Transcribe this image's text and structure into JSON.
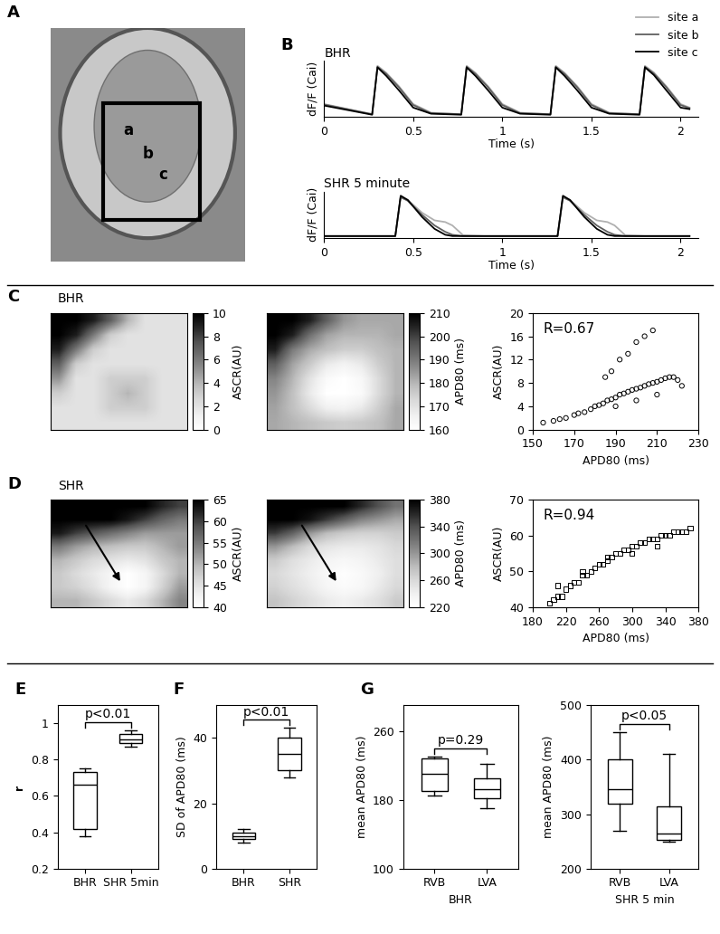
{
  "chart_data": [
    {
      "panel": "A",
      "type": "image",
      "annotations": [
        "a",
        "b",
        "c"
      ]
    },
    {
      "panel": "B",
      "type": "line",
      "title": "BHR",
      "xlabel": "Time (s)",
      "ylabel": "dF/F (Cai)",
      "x": [
        0,
        0.27,
        0.3,
        0.35,
        0.42,
        0.5,
        0.6,
        0.77,
        0.8,
        0.85,
        0.92,
        1.0,
        1.1,
        1.27,
        1.3,
        1.35,
        1.42,
        1.5,
        1.6,
        1.77,
        1.8,
        1.85,
        1.92,
        2.0,
        2.05
      ],
      "series": [
        {
          "name": "site a",
          "color": "#b0b0b0",
          "values": [
            0.25,
            0.05,
            1.0,
            0.86,
            0.6,
            0.25,
            0.08,
            0.05,
            1.0,
            0.86,
            0.6,
            0.25,
            0.08,
            0.05,
            1.0,
            0.86,
            0.6,
            0.25,
            0.08,
            0.05,
            1.0,
            0.87,
            0.6,
            0.25,
            0.18
          ]
        },
        {
          "name": "site b",
          "color": "#606060",
          "values": [
            0.24,
            0.05,
            0.98,
            0.84,
            0.58,
            0.23,
            0.07,
            0.05,
            0.98,
            0.84,
            0.58,
            0.23,
            0.07,
            0.05,
            0.98,
            0.84,
            0.58,
            0.23,
            0.07,
            0.05,
            0.98,
            0.85,
            0.58,
            0.23,
            0.17
          ]
        },
        {
          "name": "site c",
          "color": "#000000",
          "values": [
            0.22,
            0.04,
            0.97,
            0.8,
            0.52,
            0.18,
            0.06,
            0.04,
            0.97,
            0.8,
            0.52,
            0.18,
            0.06,
            0.04,
            0.97,
            0.8,
            0.52,
            0.18,
            0.06,
            0.04,
            0.97,
            0.82,
            0.52,
            0.18,
            0.15
          ]
        }
      ],
      "xlim": [
        0,
        2.1
      ],
      "xticks": [
        0,
        0.5,
        1,
        1.5,
        2
      ],
      "ylim": [
        0,
        1.1
      ],
      "tick_labels": "x",
      "legend": "upper right"
    },
    {
      "type": "line",
      "title": "SHR 5 minute",
      "xlabel": "Time (s)",
      "ylabel": "dF/F (Cai)",
      "x": [
        0,
        0.4,
        0.43,
        0.47,
        0.55,
        0.62,
        0.68,
        0.72,
        0.78,
        0.9,
        1.31,
        1.34,
        1.38,
        1.46,
        1.53,
        1.59,
        1.63,
        1.69,
        1.8,
        2.05
      ],
      "series": [
        {
          "color": "#b0b0b0",
          "values": [
            0.05,
            0.05,
            0.95,
            0.9,
            0.6,
            0.42,
            0.38,
            0.3,
            0.07,
            0.05,
            0.05,
            0.95,
            0.9,
            0.6,
            0.42,
            0.38,
            0.3,
            0.07,
            0.05,
            0.05
          ]
        },
        {
          "color": "#606060",
          "values": [
            0.05,
            0.05,
            0.97,
            0.88,
            0.55,
            0.3,
            0.15,
            0.08,
            0.05,
            0.05,
            0.05,
            0.97,
            0.88,
            0.55,
            0.3,
            0.15,
            0.08,
            0.05,
            0.05,
            0.05
          ]
        },
        {
          "color": "#000000",
          "values": [
            0.05,
            0.05,
            1.0,
            0.9,
            0.5,
            0.22,
            0.08,
            0.05,
            0.05,
            0.05,
            0.05,
            1.0,
            0.9,
            0.5,
            0.22,
            0.08,
            0.05,
            0.05,
            0.05,
            0.05
          ]
        }
      ],
      "xlim": [
        0,
        2.1
      ],
      "xticks": [
        0,
        0.5,
        1,
        1.5,
        2
      ],
      "ylim": [
        0,
        1.1
      ],
      "tick_labels": "x"
    },
    {
      "panel": "C",
      "type": "heatmap",
      "title": "BHR",
      "colorbar_label": "ASCR(AU)",
      "clim": [
        0,
        10
      ],
      "cticks": [
        0,
        2,
        4,
        6,
        8,
        10
      ],
      "tick_labels": false,
      "cells": [
        [
          10,
          10,
          9,
          7,
          4,
          2,
          2,
          2
        ],
        [
          10,
          9,
          6,
          3,
          2,
          2,
          2,
          2
        ],
        [
          9,
          6,
          3,
          2,
          2,
          2,
          2,
          2
        ],
        [
          7,
          3,
          2,
          2,
          2,
          2,
          2,
          2
        ],
        [
          5,
          2,
          2,
          3,
          3,
          3,
          2,
          2
        ],
        [
          3,
          2,
          2,
          3,
          4,
          3,
          2,
          2
        ],
        [
          2,
          2,
          2,
          3,
          3,
          3,
          2,
          2
        ],
        [
          2,
          2,
          2,
          2,
          2,
          2,
          2,
          2
        ]
      ]
    },
    {
      "type": "heatmap",
      "colorbar_label": "APD80 (ms)",
      "clim": [
        160,
        210
      ],
      "cticks": [
        160,
        170,
        180,
        190,
        200,
        210
      ],
      "tick_labels": false,
      "cells": [
        [
          210,
          210,
          205,
          195,
          185,
          182,
          182,
          182
        ],
        [
          210,
          205,
          192,
          183,
          180,
          180,
          180,
          182
        ],
        [
          205,
          190,
          182,
          178,
          175,
          175,
          178,
          180
        ],
        [
          195,
          183,
          176,
          168,
          165,
          168,
          175,
          180
        ],
        [
          188,
          180,
          170,
          162,
          160,
          163,
          172,
          180
        ],
        [
          185,
          178,
          168,
          160,
          160,
          162,
          172,
          180
        ],
        [
          183,
          178,
          172,
          166,
          165,
          168,
          175,
          182
        ],
        [
          182,
          180,
          178,
          176,
          175,
          176,
          178,
          182
        ]
      ]
    },
    {
      "type": "scatter",
      "annotation": "R=0.67",
      "xlabel": "APD80 (ms)",
      "ylabel": "ASCR(AU)",
      "marker": "o",
      "x": [
        155,
        160,
        163,
        166,
        170,
        172,
        175,
        178,
        180,
        182,
        184,
        186,
        188,
        190,
        190,
        192,
        194,
        196,
        198,
        200,
        200,
        202,
        204,
        206,
        208,
        210,
        210,
        212,
        214,
        216,
        218,
        220,
        222,
        188,
        192,
        196,
        200,
        204,
        208,
        185
      ],
      "y": [
        1.2,
        1.5,
        1.8,
        2,
        2.5,
        2.8,
        3,
        3.5,
        4,
        4.2,
        4.5,
        5,
        5.2,
        5.5,
        4,
        6,
        6.2,
        6.5,
        6.8,
        7,
        5,
        7.2,
        7.5,
        7.8,
        8,
        8.2,
        6,
        8.5,
        8.8,
        9,
        9,
        8.5,
        7.5,
        10,
        12,
        13,
        15,
        16,
        17,
        9
      ],
      "xlim": [
        150,
        230
      ],
      "xticks": [
        150,
        170,
        190,
        210,
        230
      ],
      "ylim": [
        0,
        20
      ],
      "yticks": [
        0,
        4,
        8,
        12,
        16,
        20
      ]
    },
    {
      "panel": "D",
      "type": "heatmap",
      "title": "SHR",
      "colorbar_label": "ASCR(AU)",
      "clim": [
        40,
        65
      ],
      "cticks": [
        40,
        45,
        50,
        55,
        60,
        65
      ],
      "tick_labels": false,
      "cells": [
        [
          65,
          65,
          65,
          65,
          65,
          65,
          62,
          60
        ],
        [
          65,
          65,
          65,
          65,
          63,
          60,
          57,
          55
        ],
        [
          63,
          60,
          58,
          56,
          54,
          52,
          52,
          52
        ],
        [
          55,
          52,
          50,
          49,
          48,
          48,
          50,
          52
        ],
        [
          50,
          48,
          46,
          45,
          44,
          45,
          48,
          50
        ],
        [
          48,
          46,
          44,
          42,
          40,
          42,
          46,
          50
        ],
        [
          48,
          47,
          45,
          42,
          40,
          42,
          47,
          52
        ],
        [
          50,
          50,
          48,
          46,
          44,
          46,
          50,
          54
        ]
      ]
    },
    {
      "type": "heatmap",
      "colorbar_label": "APD80 (ms)",
      "clim": [
        220,
        380
      ],
      "cticks": [
        220,
        260,
        300,
        340,
        380
      ],
      "tick_labels": false,
      "cells": [
        [
          380,
          380,
          380,
          380,
          380,
          360,
          340,
          320
        ],
        [
          380,
          380,
          370,
          350,
          330,
          310,
          300,
          290
        ],
        [
          350,
          330,
          300,
          280,
          270,
          265,
          265,
          270
        ],
        [
          300,
          280,
          260,
          250,
          245,
          245,
          250,
          260
        ],
        [
          270,
          255,
          245,
          235,
          230,
          235,
          245,
          255
        ],
        [
          260,
          250,
          240,
          228,
          222,
          228,
          240,
          255
        ],
        [
          265,
          255,
          245,
          232,
          225,
          230,
          245,
          260
        ],
        [
          275,
          265,
          255,
          245,
          238,
          245,
          255,
          270
        ]
      ]
    },
    {
      "type": "scatter",
      "annotation": "R=0.94",
      "xlabel": "APD80 (ms)",
      "ylabel": "ASCR(AU)",
      "marker": "s",
      "x": [
        200,
        205,
        210,
        215,
        220,
        225,
        230,
        235,
        240,
        245,
        250,
        255,
        260,
        265,
        270,
        275,
        280,
        285,
        290,
        295,
        300,
        305,
        310,
        315,
        320,
        325,
        330,
        335,
        340,
        345,
        350,
        355,
        360,
        365,
        370,
        210,
        240,
        270,
        300,
        330
      ],
      "y": [
        41,
        42,
        43,
        43,
        45,
        46,
        47,
        47,
        49,
        49,
        50,
        51,
        52,
        52,
        53,
        54,
        55,
        55,
        56,
        56,
        57,
        57,
        58,
        58,
        59,
        59,
        59,
        60,
        60,
        60,
        61,
        61,
        61,
        61,
        62,
        46,
        50,
        54,
        55,
        57
      ],
      "xlim": [
        180,
        380
      ],
      "xticks": [
        180,
        220,
        260,
        300,
        340,
        380
      ],
      "ylim": [
        40,
        70
      ],
      "yticks": [
        40,
        50,
        60,
        70
      ]
    },
    {
      "panel": "E",
      "type": "box",
      "ylabel": "r",
      "categories": [
        "BHR",
        "SHR 5min"
      ],
      "annotation": "p<0.01",
      "boxes": [
        {
          "min": 0.38,
          "q1": 0.42,
          "median": 0.66,
          "q3": 0.73,
          "max": 0.75
        },
        {
          "min": 0.87,
          "q1": 0.89,
          "median": 0.91,
          "q3": 0.94,
          "max": 0.96
        }
      ],
      "ylim": [
        0.2,
        1.1
      ],
      "yticks": [
        0.2,
        0.4,
        0.6,
        0.8,
        1
      ]
    },
    {
      "panel": "F",
      "type": "box",
      "ylabel": "SD of APD80 (ms)",
      "categories": [
        "BHR",
        "SHR"
      ],
      "annotation": "p<0.01",
      "boxes": [
        {
          "min": 8,
          "q1": 9,
          "median": 10,
          "q3": 11,
          "max": 12
        },
        {
          "min": 28,
          "q1": 30,
          "median": 35,
          "q3": 40,
          "max": 43
        }
      ],
      "ylim": [
        0,
        50
      ],
      "yticks": [
        0,
        20,
        40
      ]
    },
    {
      "panel": "G",
      "type": "box",
      "ylabel": "mean APD80 (ms)",
      "xlabel": "BHR",
      "categories": [
        "RVB",
        "LVA"
      ],
      "annotation": "p=0.29",
      "boxes": [
        {
          "min": 185,
          "q1": 190,
          "median": 210,
          "q3": 228,
          "max": 230
        },
        {
          "min": 170,
          "q1": 182,
          "median": 192,
          "q3": 205,
          "max": 222
        }
      ],
      "ylim": [
        100,
        290
      ],
      "yticks": [
        100,
        180,
        260
      ]
    },
    {
      "type": "box",
      "ylabel": "mean APD80 (ms)",
      "xlabel": "SHR 5 min",
      "categories": [
        "RVB",
        "LVA"
      ],
      "annotation": "p<0.05",
      "boxes": [
        {
          "min": 270,
          "q1": 320,
          "median": 345,
          "q3": 400,
          "max": 450
        },
        {
          "min": 250,
          "q1": 252,
          "median": 265,
          "q3": 315,
          "max": 410
        }
      ],
      "ylim": [
        200,
        500
      ],
      "yticks": [
        200,
        300,
        400,
        500
      ]
    }
  ]
}
